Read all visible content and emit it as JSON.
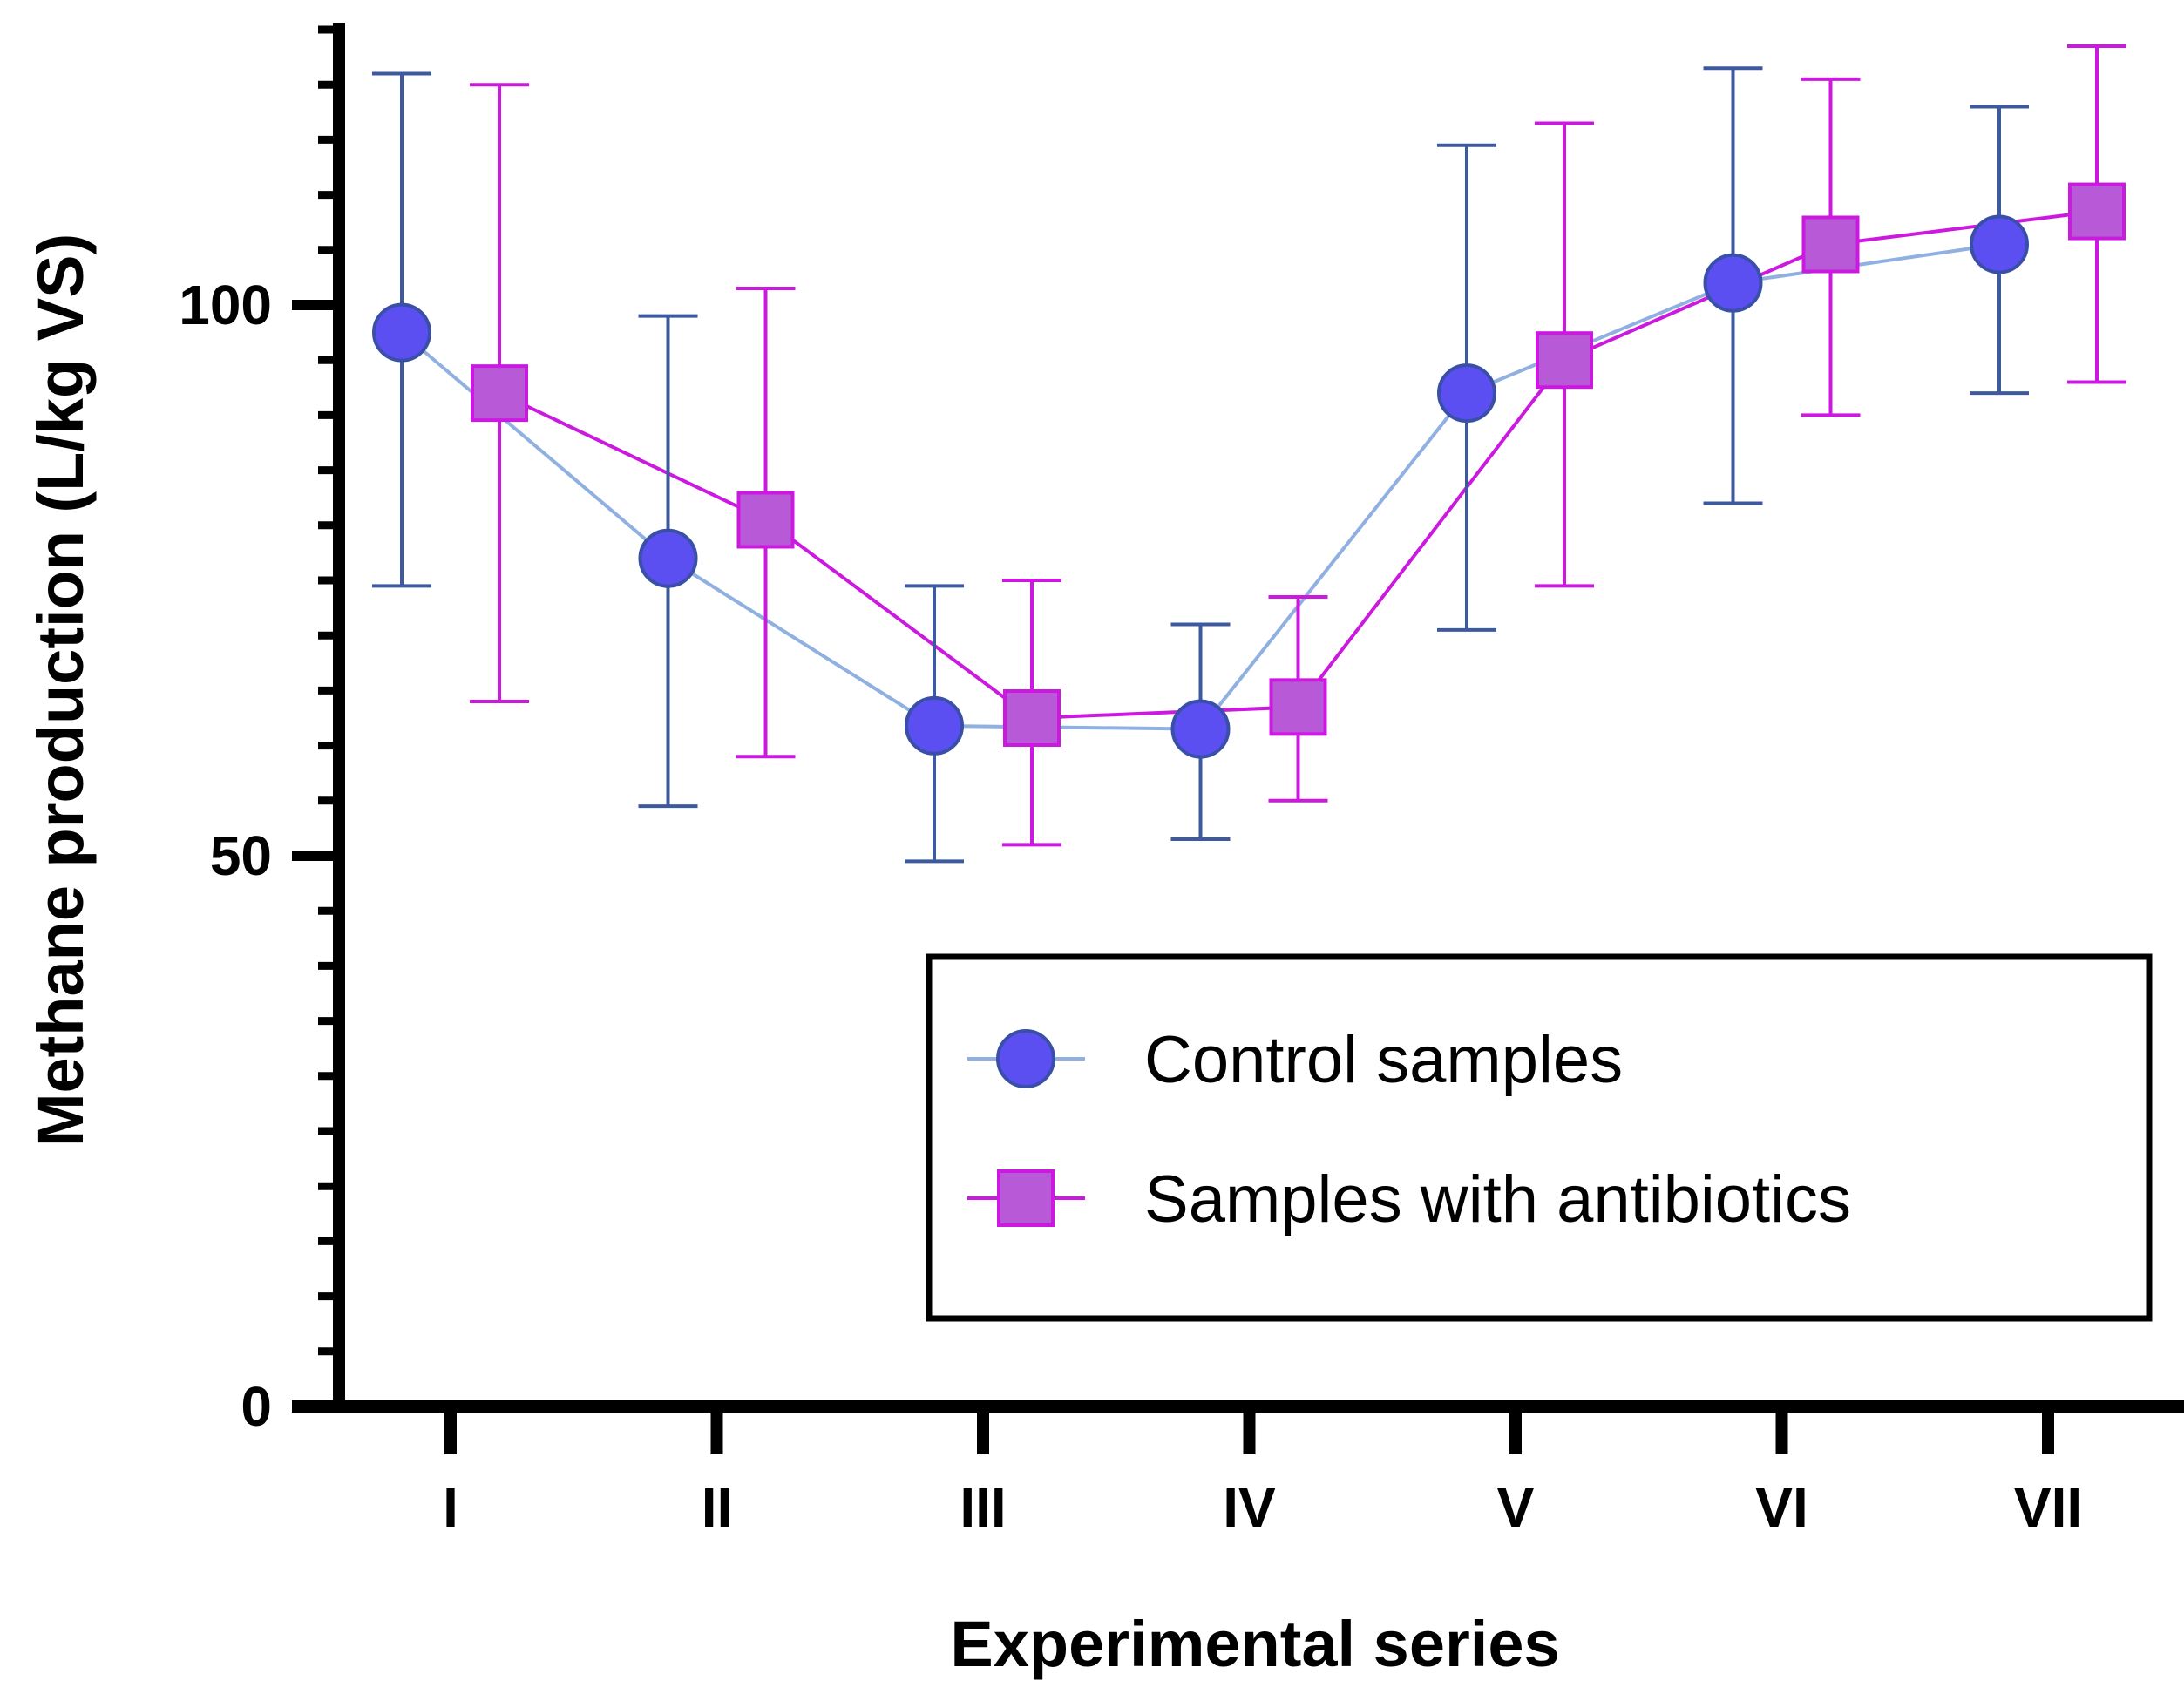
{
  "chart_data": {
    "type": "line",
    "title": "",
    "xlabel": "Experimental series",
    "ylabel": "Methane production (L/kg VS)",
    "categories": [
      "I",
      "II",
      "III",
      "IV",
      "V",
      "VI",
      "VII"
    ],
    "ylim": [
      0,
      125
    ],
    "yticks": [
      0,
      50,
      100
    ],
    "yminor_step": 5,
    "grid": false,
    "legend_position": "lower-right",
    "series": [
      {
        "name": "Control samples",
        "marker": "circle",
        "line_color": "#8fb0e0",
        "marker_fill": "#5c4ff2",
        "marker_edge": "#3a4fa8",
        "errorbar_color": "#3d5aa0",
        "values": [
          97.5,
          77.0,
          61.8,
          61.5,
          92.0,
          102.0,
          105.5
        ],
        "err_upper": [
          121.0,
          99.0,
          74.5,
          71.0,
          114.5,
          121.5,
          118.0
        ],
        "err_lower": [
          74.5,
          54.5,
          49.5,
          51.5,
          70.5,
          82.0,
          92.0
        ]
      },
      {
        "name": "Samples with antibiotics",
        "marker": "square",
        "line_color": "#cc19e0",
        "marker_fill": "#b85ad8",
        "marker_edge": "#cc19e0",
        "errorbar_color": "#cc19e0",
        "values": [
          92.0,
          80.5,
          62.5,
          63.5,
          95.0,
          105.5,
          108.5
        ],
        "err_upper": [
          120.0,
          101.5,
          75.0,
          73.5,
          116.5,
          120.5,
          123.5
        ],
        "err_lower": [
          64.0,
          59.0,
          51.0,
          55.0,
          74.5,
          90.0,
          93.0
        ]
      }
    ]
  }
}
